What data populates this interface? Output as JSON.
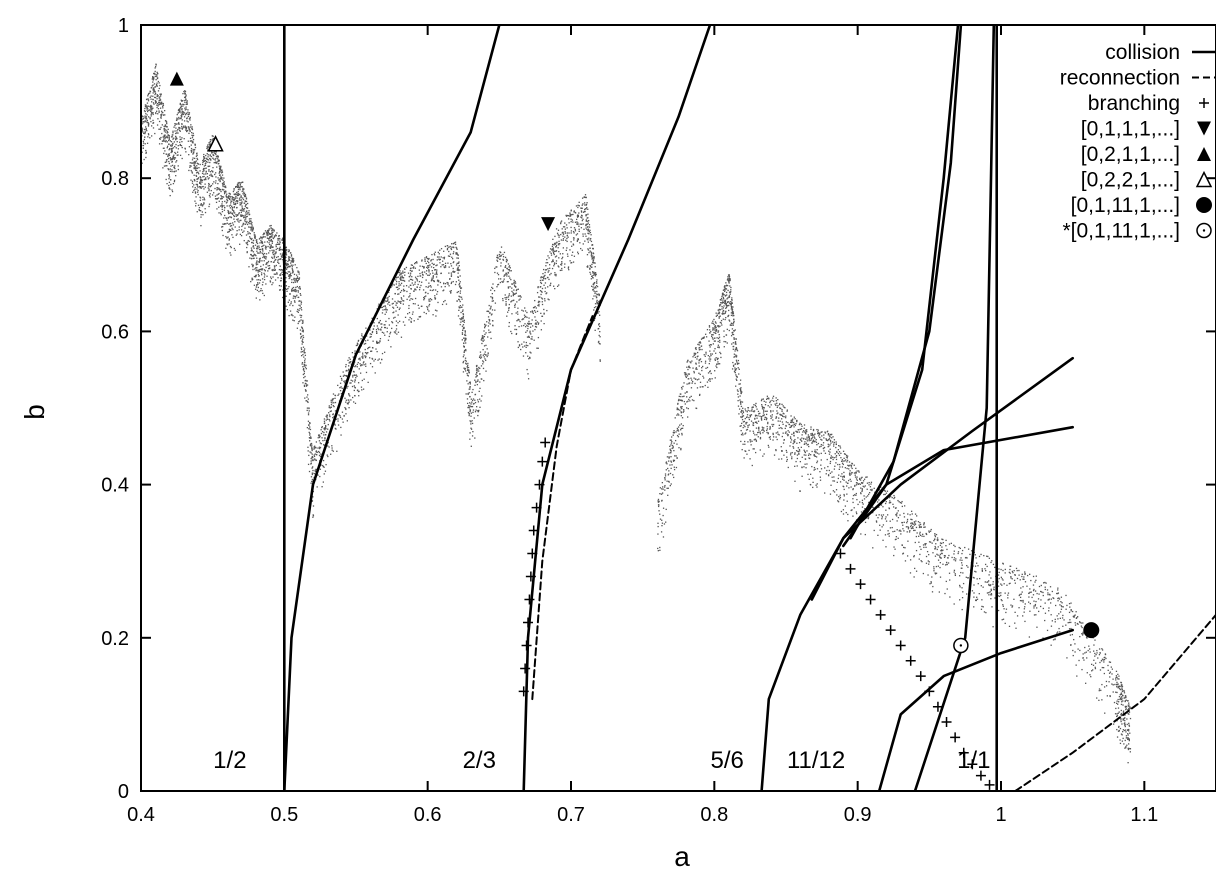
{
  "chart_data": {
    "type": "scatter",
    "title": "",
    "xlabel": "a",
    "ylabel": "b",
    "xlim": [
      0.4,
      1.15
    ],
    "ylim": [
      0,
      1
    ],
    "grid": false,
    "legend_position": "top-right",
    "x_ticks": [
      "0.4",
      "0.5",
      "0.6",
      "0.7",
      "0.8",
      "0.9",
      "1",
      "1.1"
    ],
    "y_ticks": [
      "0",
      "0.2",
      "0.4",
      "0.6",
      "0.8",
      "1"
    ],
    "region_labels": [
      {
        "text": "1/2",
        "x": 0.462,
        "y": 0.03
      },
      {
        "text": "2/3",
        "x": 0.636,
        "y": 0.03
      },
      {
        "text": "5/6",
        "x": 0.809,
        "y": 0.03
      },
      {
        "text": "11/12",
        "x": 0.871,
        "y": 0.03
      },
      {
        "text": "1/1",
        "x": 0.981,
        "y": 0.03
      }
    ],
    "legend": [
      {
        "label": "collision",
        "symbol": "solid-line"
      },
      {
        "label": "reconnection",
        "symbol": "dashed-line"
      },
      {
        "label": "branching",
        "symbol": "plus"
      },
      {
        "label": "[0,1,1,1,...]",
        "symbol": "triangle-down-filled"
      },
      {
        "label": "[0,2,1,1,...]",
        "symbol": "triangle-up-filled"
      },
      {
        "label": "[0,2,2,1,...]",
        "symbol": "triangle-up-open"
      },
      {
        "label": "[0,1,11,1,...]",
        "symbol": "circle-filled"
      },
      {
        "label": "*[0,1,11,1,...]",
        "symbol": "circle-open"
      }
    ],
    "series": [
      {
        "name": "collision",
        "style": "solid",
        "curves": [
          [
            [
              0.5,
              0
            ],
            [
              0.5,
              1
            ]
          ],
          [
            [
              0.5,
              0
            ],
            [
              0.505,
              0.2
            ],
            [
              0.52,
              0.4
            ],
            [
              0.55,
              0.57
            ],
            [
              0.59,
              0.72
            ],
            [
              0.63,
              0.86
            ],
            [
              0.65,
              1
            ]
          ],
          [
            [
              0.667,
              0
            ],
            [
              0.67,
              0.2
            ],
            [
              0.68,
              0.4
            ],
            [
              0.7,
              0.55
            ],
            [
              0.74,
              0.72
            ],
            [
              0.775,
              0.88
            ],
            [
              0.797,
              1
            ]
          ],
          [
            [
              0.833,
              0
            ],
            [
              0.838,
              0.12
            ],
            [
              0.86,
              0.23
            ],
            [
              0.89,
              0.33
            ],
            [
              0.92,
              0.4
            ],
            [
              0.96,
              0.445
            ],
            [
              1.05,
              0.475
            ]
          ],
          [
            [
              0.868,
              0.25
            ],
            [
              0.89,
              0.33
            ],
            [
              0.93,
              0.4
            ],
            [
              0.98,
              0.47
            ],
            [
              1.05,
              0.565
            ]
          ],
          [
            [
              0.89,
              0.32
            ],
            [
              0.92,
              0.4
            ],
            [
              0.945,
              0.55
            ],
            [
              0.96,
              0.8
            ],
            [
              0.97,
              1
            ]
          ],
          [
            [
              0.895,
              0.33
            ],
            [
              0.925,
              0.43
            ],
            [
              0.95,
              0.6
            ],
            [
              0.965,
              0.82
            ],
            [
              0.972,
              1
            ]
          ],
          [
            [
              0.915,
              0
            ],
            [
              0.93,
              0.1
            ],
            [
              0.96,
              0.15
            ],
            [
              1.0,
              0.18
            ],
            [
              1.05,
              0.21
            ]
          ],
          [
            [
              0.94,
              0
            ],
            [
              0.975,
              0.2
            ],
            [
              0.99,
              0.5
            ],
            [
              0.993,
              0.8
            ],
            [
              0.995,
              1
            ]
          ],
          [
            [
              0.997,
              0
            ],
            [
              0.997,
              1
            ]
          ]
        ]
      },
      {
        "name": "reconnection",
        "style": "dashed",
        "curves": [
          [
            [
              0.673,
              0.12
            ],
            [
              0.68,
              0.3
            ],
            [
              0.69,
              0.45
            ],
            [
              0.7,
              0.55
            ],
            [
              0.715,
              0.62
            ]
          ],
          [
            [
              1.01,
              0
            ],
            [
              1.05,
              0.05
            ],
            [
              1.1,
              0.12
            ],
            [
              1.15,
              0.23
            ]
          ]
        ]
      },
      {
        "name": "branching",
        "style": "plus",
        "points": [
          [
            0.667,
            0.13
          ],
          [
            0.668,
            0.16
          ],
          [
            0.669,
            0.19
          ],
          [
            0.67,
            0.22
          ],
          [
            0.671,
            0.25
          ],
          [
            0.672,
            0.28
          ],
          [
            0.673,
            0.31
          ],
          [
            0.674,
            0.34
          ],
          [
            0.676,
            0.37
          ],
          [
            0.678,
            0.4
          ],
          [
            0.68,
            0.43
          ],
          [
            0.682,
            0.455
          ],
          [
            0.888,
            0.31
          ],
          [
            0.895,
            0.29
          ],
          [
            0.902,
            0.27
          ],
          [
            0.909,
            0.25
          ],
          [
            0.916,
            0.23
          ],
          [
            0.923,
            0.21
          ],
          [
            0.93,
            0.19
          ],
          [
            0.937,
            0.17
          ],
          [
            0.944,
            0.15
          ],
          [
            0.95,
            0.13
          ],
          [
            0.956,
            0.11
          ],
          [
            0.962,
            0.09
          ],
          [
            0.968,
            0.07
          ],
          [
            0.974,
            0.05
          ],
          [
            0.98,
            0.035
          ],
          [
            0.986,
            0.02
          ],
          [
            0.992,
            0.008
          ],
          [
            0.997,
            0.0
          ]
        ]
      },
      {
        "name": "[0,1,1,1,...]",
        "style": "triangle-down-filled",
        "points": [
          [
            0.684,
            0.74
          ]
        ]
      },
      {
        "name": "[0,2,1,1,...]",
        "style": "triangle-up-filled",
        "points": [
          [
            0.425,
            0.93
          ]
        ]
      },
      {
        "name": "[0,2,2,1,...]",
        "style": "triangle-up-open",
        "points": [
          [
            0.452,
            0.845
          ]
        ]
      },
      {
        "name": "[0,1,11,1,...]",
        "style": "circle-filled",
        "points": [
          [
            1.063,
            0.21
          ]
        ]
      },
      {
        "name": "*[0,1,11,1,...]",
        "style": "circle-open",
        "points": [
          [
            0.972,
            0.19
          ]
        ]
      }
    ],
    "scatter_clouds": [
      [
        [
          0.4,
          0.88
        ],
        [
          0.41,
          0.95
        ],
        [
          0.42,
          0.85
        ],
        [
          0.43,
          0.92
        ],
        [
          0.44,
          0.82
        ],
        [
          0.45,
          0.86
        ],
        [
          0.46,
          0.78
        ],
        [
          0.47,
          0.8
        ],
        [
          0.48,
          0.72
        ],
        [
          0.49,
          0.74
        ],
        [
          0.5,
          0.72
        ],
        [
          0.51,
          0.68
        ],
        [
          0.52,
          0.42
        ]
      ],
      [
        [
          0.52,
          0.45
        ],
        [
          0.54,
          0.55
        ],
        [
          0.56,
          0.62
        ],
        [
          0.58,
          0.68
        ],
        [
          0.6,
          0.7
        ],
        [
          0.62,
          0.72
        ],
        [
          0.63,
          0.52
        ],
        [
          0.65,
          0.72
        ],
        [
          0.67,
          0.62
        ],
        [
          0.69,
          0.74
        ],
        [
          0.71,
          0.78
        ],
        [
          0.72,
          0.64
        ]
      ],
      [
        [
          0.76,
          0.38
        ],
        [
          0.78,
          0.56
        ],
        [
          0.8,
          0.62
        ],
        [
          0.81,
          0.68
        ],
        [
          0.82,
          0.5
        ],
        [
          0.84,
          0.52
        ],
        [
          0.86,
          0.48
        ],
        [
          0.88,
          0.47
        ],
        [
          0.9,
          0.42
        ],
        [
          0.93,
          0.38
        ],
        [
          0.96,
          0.33
        ],
        [
          1.0,
          0.3
        ],
        [
          1.04,
          0.27
        ],
        [
          1.08,
          0.16
        ],
        [
          1.09,
          0.11
        ]
      ]
    ]
  }
}
